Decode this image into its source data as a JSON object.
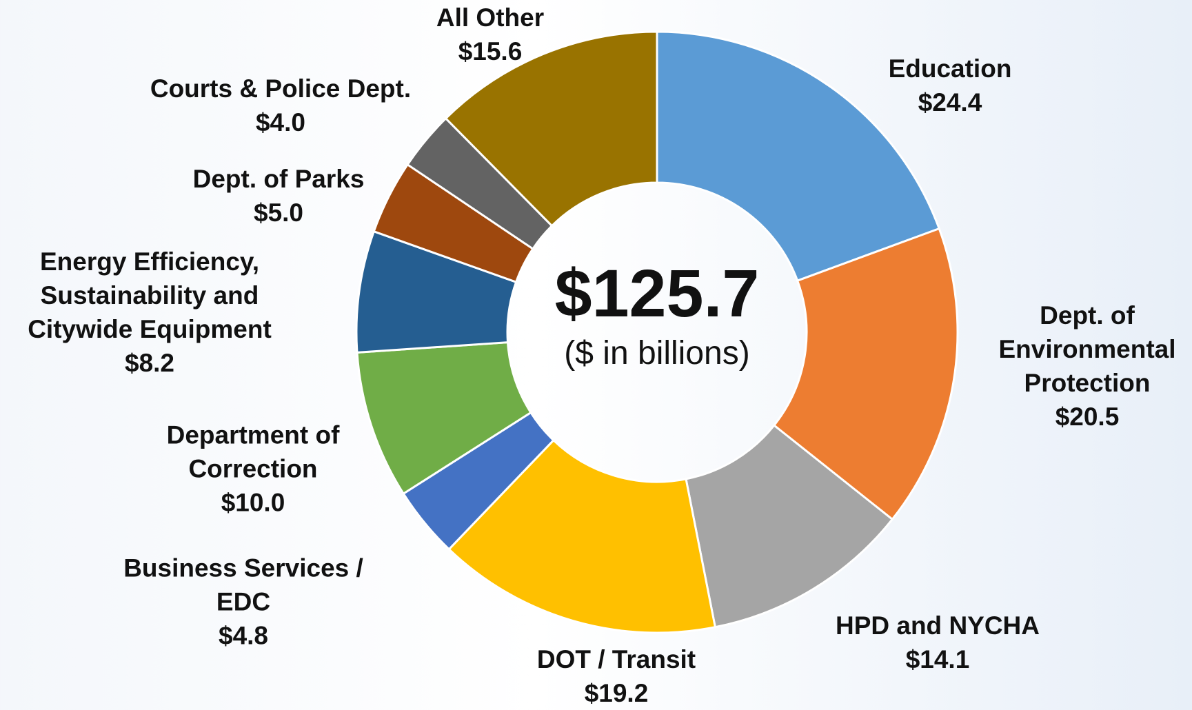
{
  "chart_data": {
    "type": "donut",
    "categories": [
      "Education",
      "Dept. of\nEnvironmental\nProtection",
      "HPD and NYCHA",
      "DOT / Transit",
      "Business Services /\nEDC",
      "Department of\nCorrection",
      "Energy Efficiency,\nSustainability and\nCitywide Equipment",
      "Dept. of Parks",
      "Courts & Police Dept.",
      "All Other"
    ],
    "values": [
      24.4,
      20.5,
      14.1,
      19.2,
      4.8,
      10.0,
      8.2,
      5.0,
      4.0,
      15.6
    ],
    "value_labels": [
      "$24.4",
      "$20.5",
      "$14.1",
      "$19.2",
      "$4.8",
      "$10.0",
      "$8.2",
      "$5.0",
      "$4.0",
      "$15.6"
    ],
    "colors": [
      "#5b9bd5",
      "#ed7d31",
      "#a5a5a5",
      "#ffc000",
      "#4472c4",
      "#70ad47",
      "#255e91",
      "#9e480e",
      "#636363",
      "#997300"
    ],
    "total": 125.7,
    "total_label": "$125.7",
    "subtitle": "($ in billions)"
  }
}
